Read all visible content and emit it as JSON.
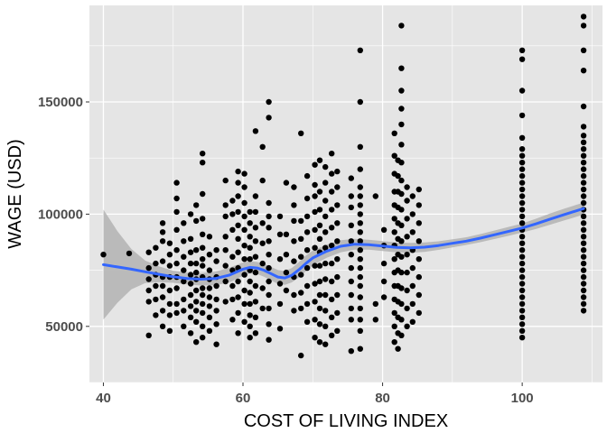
{
  "chart_data": {
    "type": "scatter",
    "title": "",
    "xlabel": "COST OF LIVING INDEX",
    "ylabel": "WAGE (USD)",
    "xlim": [
      38,
      111.5
    ],
    "ylim": [
      25000,
      193000
    ],
    "x_ticks": [
      40,
      60,
      80,
      100
    ],
    "x_tick_labels": [
      "40",
      "60",
      "80",
      "100"
    ],
    "y_ticks": [
      50000,
      100000,
      150000
    ],
    "y_tick_labels": [
      "50000",
      "100000",
      "150000"
    ],
    "grid": true,
    "legend": "none",
    "colors": {
      "panel_background": "#e5e5e5",
      "grid_line": "#ffffff",
      "points": "#000000",
      "smooth_line": "#3366ff",
      "confidence_band": "#b3b3b3"
    },
    "point_columns": [
      {
        "x": 40.0,
        "ys": [
          82000
        ]
      },
      {
        "x": 43.7,
        "ys": [
          82500
        ]
      },
      {
        "x": 46.5,
        "ys": [
          46000,
          61000,
          66000,
          71000,
          76000,
          83000
        ]
      },
      {
        "x": 47.5,
        "ys": [
          55000,
          62000,
          68000,
          73000,
          78000,
          85000
        ]
      },
      {
        "x": 48.5,
        "ys": [
          50000,
          57000,
          63000,
          68000,
          72000,
          79000,
          88000,
          92000,
          96000
        ]
      },
      {
        "x": 49.5,
        "ys": [
          48000,
          55000,
          60000,
          66000,
          72000,
          77000,
          82000,
          87000
        ]
      },
      {
        "x": 50.5,
        "ys": [
          56000,
          60000,
          67000,
          72000,
          78000,
          84000,
          93000,
          101000,
          107000,
          114000
        ]
      },
      {
        "x": 51.5,
        "ys": [
          50000,
          57000,
          62000,
          70000,
          75000,
          81000,
          88000,
          96000
        ]
      },
      {
        "x": 52.5,
        "ys": [
          47000,
          54000,
          59000,
          64000,
          69000,
          73000,
          78000,
          83000,
          89000,
          100000
        ]
      },
      {
        "x": 53.3,
        "ys": [
          43000,
          52000,
          57000,
          61000,
          66000,
          71000,
          74000,
          78000,
          84000,
          97000,
          104000
        ]
      },
      {
        "x": 54.2,
        "ys": [
          45000,
          50000,
          56000,
          60000,
          64000,
          67000,
          72000,
          77000,
          80000,
          85000,
          91000,
          98000,
          109000,
          123000,
          127000
        ]
      },
      {
        "x": 55.2,
        "ys": [
          48000,
          54000,
          59000,
          63000,
          67000,
          71000,
          75000,
          82000,
          90000
        ]
      },
      {
        "x": 56.2,
        "ys": [
          42000,
          51000,
          57000,
          62000,
          68000,
          72000,
          79000,
          84000
        ]
      },
      {
        "x": 57.5,
        "ys": [
          61000,
          70000,
          77000,
          84000,
          90000,
          99000,
          104000,
          115000
        ]
      },
      {
        "x": 58.5,
        "ys": [
          53000,
          62000,
          68000,
          75000,
          81000,
          93000,
          100000,
          106000
        ]
      },
      {
        "x": 59.3,
        "ys": [
          47000,
          56000,
          63000,
          70000,
          76000,
          83000,
          89000,
          95000,
          101000,
          108000,
          114000,
          119000
        ]
      },
      {
        "x": 60.2,
        "ys": [
          52000,
          60000,
          66000,
          73000,
          80000,
          86000,
          93000,
          99000,
          105000,
          112000,
          118000
        ]
      },
      {
        "x": 61.0,
        "ys": [
          45000,
          50000,
          55000,
          60000,
          65000,
          70000,
          75000,
          80000,
          85000,
          90000,
          96000,
          101000
        ]
      },
      {
        "x": 61.8,
        "ys": [
          47000,
          54000,
          61000,
          68000,
          74000,
          81000,
          88000,
          94000,
          101000,
          108000,
          137000
        ]
      },
      {
        "x": 62.8,
        "ys": [
          58000,
          67000,
          78000,
          87000,
          96000,
          115000,
          130000
        ]
      },
      {
        "x": 63.7,
        "ys": [
          44000,
          51000,
          58000,
          64000,
          70000,
          76000,
          82000,
          88000,
          94000,
          99000,
          105000,
          143000,
          150000
        ]
      },
      {
        "x": 65.3,
        "ys": [
          49000,
          60000,
          69000,
          80000,
          91000,
          99000
        ]
      },
      {
        "x": 66.2,
        "ys": [
          66000,
          74000,
          82000,
          91000,
          114000
        ]
      },
      {
        "x": 67.3,
        "ys": [
          57000,
          64000,
          72000,
          79000,
          88000,
          97000,
          104000,
          112000
        ]
      },
      {
        "x": 68.3,
        "ys": [
          37000,
          58000,
          65000,
          73000,
          81000,
          89000,
          97000,
          136000
        ]
      },
      {
        "x": 69.2,
        "ys": [
          52000,
          60000,
          68000,
          76000,
          84000,
          92000,
          99000,
          107000,
          117000
        ]
      },
      {
        "x": 70.3,
        "ys": [
          45000,
          53000,
          61000,
          69000,
          77000,
          85000,
          93000,
          101000,
          108000,
          113000,
          122000
        ]
      },
      {
        "x": 71.0,
        "ys": [
          43000,
          51000,
          58000,
          64000,
          70000,
          77000,
          83000,
          89000,
          95000,
          102000,
          110000,
          124000
        ]
      },
      {
        "x": 71.8,
        "ys": [
          42000,
          50000,
          57000,
          64000,
          71000,
          78000,
          85000,
          92000,
          99000,
          106000,
          114000,
          121000
        ]
      },
      {
        "x": 72.7,
        "ys": [
          46000,
          54000,
          62000,
          70000,
          78000,
          86000,
          94000,
          102000,
          110000,
          118000,
          127000
        ]
      },
      {
        "x": 73.5,
        "ys": [
          48000,
          56000,
          64000,
          72000,
          80000,
          88000,
          96000,
          104000,
          112000,
          119000
        ]
      },
      {
        "x": 75.5,
        "ys": [
          39000,
          53000,
          58000,
          64000,
          70000,
          76000,
          82000,
          88000,
          95000,
          103000,
          108000,
          116000
        ]
      },
      {
        "x": 76.8,
        "ys": [
          40000,
          48000,
          53000,
          58000,
          63000,
          68000,
          72000,
          76000,
          80000,
          84000,
          88000,
          92000,
          96000,
          100000,
          104000,
          108000,
          112000,
          120000,
          130000,
          150000,
          173000
        ]
      },
      {
        "x": 79.0,
        "ys": [
          53000,
          60000,
          108000
        ]
      },
      {
        "x": 80.2,
        "ys": [
          63000,
          70000,
          78000,
          86000,
          93000
        ]
      },
      {
        "x": 81.7,
        "ys": [
          43000,
          50000,
          56000,
          62000,
          68000,
          74000,
          80000,
          86000,
          92000,
          98000,
          104000,
          110000,
          118000,
          126000,
          136000
        ]
      },
      {
        "x": 82.2,
        "ys": [
          40000,
          47000,
          54000,
          61000,
          68000,
          75000,
          82000,
          89000,
          96000,
          103000,
          110000,
          117000,
          124000
        ]
      },
      {
        "x": 82.7,
        "ys": [
          46000,
          53000,
          60000,
          67000,
          74000,
          81000,
          88000,
          95000,
          102000,
          109000,
          115000,
          123000,
          131000,
          140000,
          147000,
          155000,
          165000,
          184000
        ]
      },
      {
        "x": 83.5,
        "ys": [
          50000,
          58000,
          66000,
          74000,
          82000,
          90000,
          98000,
          106000,
          112000
        ]
      },
      {
        "x": 84.3,
        "ys": [
          52000,
          60000,
          68000,
          76000,
          84000,
          92000,
          100000,
          108000
        ]
      },
      {
        "x": 85.2,
        "ys": [
          56000,
          64000,
          72000,
          80000,
          88000,
          96000,
          104000,
          111000
        ]
      },
      {
        "x": 100.0,
        "ys": [
          45000,
          48000,
          51000,
          54000,
          57000,
          60000,
          63000,
          66000,
          69000,
          72000,
          75000,
          78000,
          81000,
          84000,
          87000,
          90000,
          93000,
          96000,
          99000,
          102000,
          105000,
          108000,
          111000,
          114000,
          117000,
          120000,
          123000,
          126000,
          129000,
          134000,
          144000,
          155000,
          169000,
          173000
        ]
      },
      {
        "x": 108.8,
        "ys": [
          57000,
          60000,
          63000,
          66000,
          69000,
          72000,
          75000,
          78000,
          81000,
          84000,
          87000,
          90000,
          93000,
          96000,
          99000,
          102000,
          105000,
          108000,
          111000,
          114000,
          117000,
          120000,
          123000,
          126000,
          129000,
          132000,
          135000,
          139000,
          148000,
          164000,
          173000,
          184000,
          188000
        ]
      }
    ],
    "smooth": {
      "x": [
        40,
        42,
        44,
        46,
        48,
        50,
        52,
        54,
        56,
        58,
        60,
        61,
        62,
        63,
        64,
        65,
        66,
        67,
        68,
        69,
        70,
        72,
        74,
        76,
        78,
        80,
        82,
        84,
        86,
        88,
        90,
        92,
        94,
        96,
        98,
        100,
        102,
        104,
        106,
        108.8
      ],
      "y": [
        77500,
        76500,
        75500,
        74300,
        73200,
        72100,
        71300,
        71000,
        71300,
        72800,
        75500,
        76300,
        76000,
        75000,
        73500,
        72000,
        71600,
        72800,
        75200,
        78000,
        80500,
        83500,
        85700,
        86600,
        86400,
        85800,
        85200,
        85000,
        85300,
        86000,
        87000,
        88000,
        89300,
        90800,
        92300,
        93800,
        95700,
        97800,
        99800,
        102500
      ],
      "lower": [
        53000,
        60500,
        66500,
        69300,
        69700,
        69400,
        68700,
        68200,
        68300,
        69500,
        72500,
        73600,
        73300,
        72100,
        70500,
        68900,
        68500,
        69600,
        71800,
        74500,
        77200,
        80600,
        83000,
        84200,
        84200,
        83600,
        83000,
        82800,
        83200,
        84100,
        85200,
        86300,
        87500,
        88900,
        90300,
        91800,
        93400,
        95300,
        97200,
        99800
      ],
      "upper": [
        102000,
        92500,
        84500,
        79300,
        76700,
        74800,
        73900,
        73800,
        74300,
        76100,
        78500,
        79000,
        78700,
        77900,
        76500,
        75100,
        74700,
        76000,
        78600,
        81500,
        83800,
        86400,
        88400,
        89000,
        88600,
        88000,
        87400,
        87200,
        87400,
        87900,
        88800,
        89700,
        91100,
        92700,
        94300,
        95800,
        98000,
        100300,
        102400,
        105200
      ]
    }
  }
}
